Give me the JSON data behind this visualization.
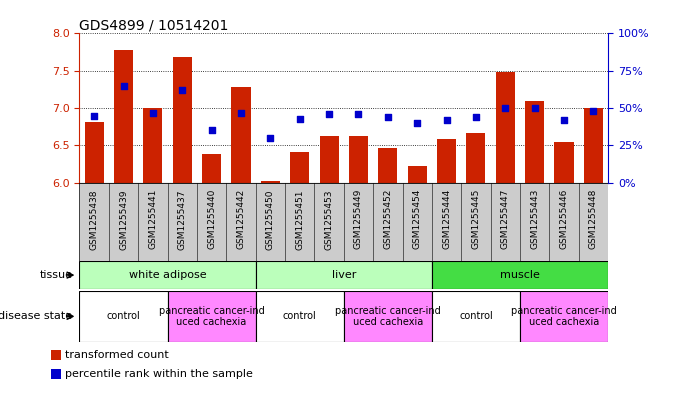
{
  "title": "GDS4899 / 10514201",
  "samples": [
    "GSM1255438",
    "GSM1255439",
    "GSM1255441",
    "GSM1255437",
    "GSM1255440",
    "GSM1255442",
    "GSM1255450",
    "GSM1255451",
    "GSM1255453",
    "GSM1255449",
    "GSM1255452",
    "GSM1255454",
    "GSM1255444",
    "GSM1255445",
    "GSM1255447",
    "GSM1255443",
    "GSM1255446",
    "GSM1255448"
  ],
  "transformed_count": [
    6.82,
    7.78,
    7.0,
    7.68,
    6.39,
    7.28,
    6.02,
    6.41,
    6.62,
    6.62,
    6.47,
    6.22,
    6.59,
    6.67,
    7.48,
    7.1,
    6.54,
    7.0
  ],
  "percentile_rank": [
    45,
    65,
    47,
    62,
    35,
    47,
    30,
    43,
    46,
    46,
    44,
    40,
    42,
    44,
    50,
    50,
    42,
    48
  ],
  "ylim_left": [
    6.0,
    8.0
  ],
  "ylim_right": [
    0,
    100
  ],
  "yticks_left": [
    6.0,
    6.5,
    7.0,
    7.5,
    8.0
  ],
  "yticks_right": [
    0,
    25,
    50,
    75,
    100
  ],
  "bar_color": "#cc2200",
  "dot_color": "#0000cc",
  "background_color": "#ffffff",
  "tissue_groups": [
    {
      "label": "white adipose",
      "start": 0,
      "end": 6,
      "color": "#bbffbb"
    },
    {
      "label": "liver",
      "start": 6,
      "end": 12,
      "color": "#bbffbb"
    },
    {
      "label": "muscle",
      "start": 12,
      "end": 18,
      "color": "#44dd44"
    }
  ],
  "disease_groups": [
    {
      "label": "control",
      "start": 0,
      "end": 3,
      "color": "#ffffff"
    },
    {
      "label": "pancreatic cancer-ind\nuced cachexia",
      "start": 3,
      "end": 6,
      "color": "#ff88ff"
    },
    {
      "label": "control",
      "start": 6,
      "end": 9,
      "color": "#ffffff"
    },
    {
      "label": "pancreatic cancer-ind\nuced cachexia",
      "start": 9,
      "end": 12,
      "color": "#ff88ff"
    },
    {
      "label": "control",
      "start": 12,
      "end": 15,
      "color": "#ffffff"
    },
    {
      "label": "pancreatic cancer-ind\nuced cachexia",
      "start": 15,
      "end": 18,
      "color": "#ff88ff"
    }
  ],
  "tissue_row_label": "tissue",
  "disease_row_label": "disease state",
  "legend_bar_label": "transformed count",
  "legend_dot_label": "percentile rank within the sample",
  "xtick_bg_color": "#cccccc",
  "chart_bg_color": "#ffffff"
}
